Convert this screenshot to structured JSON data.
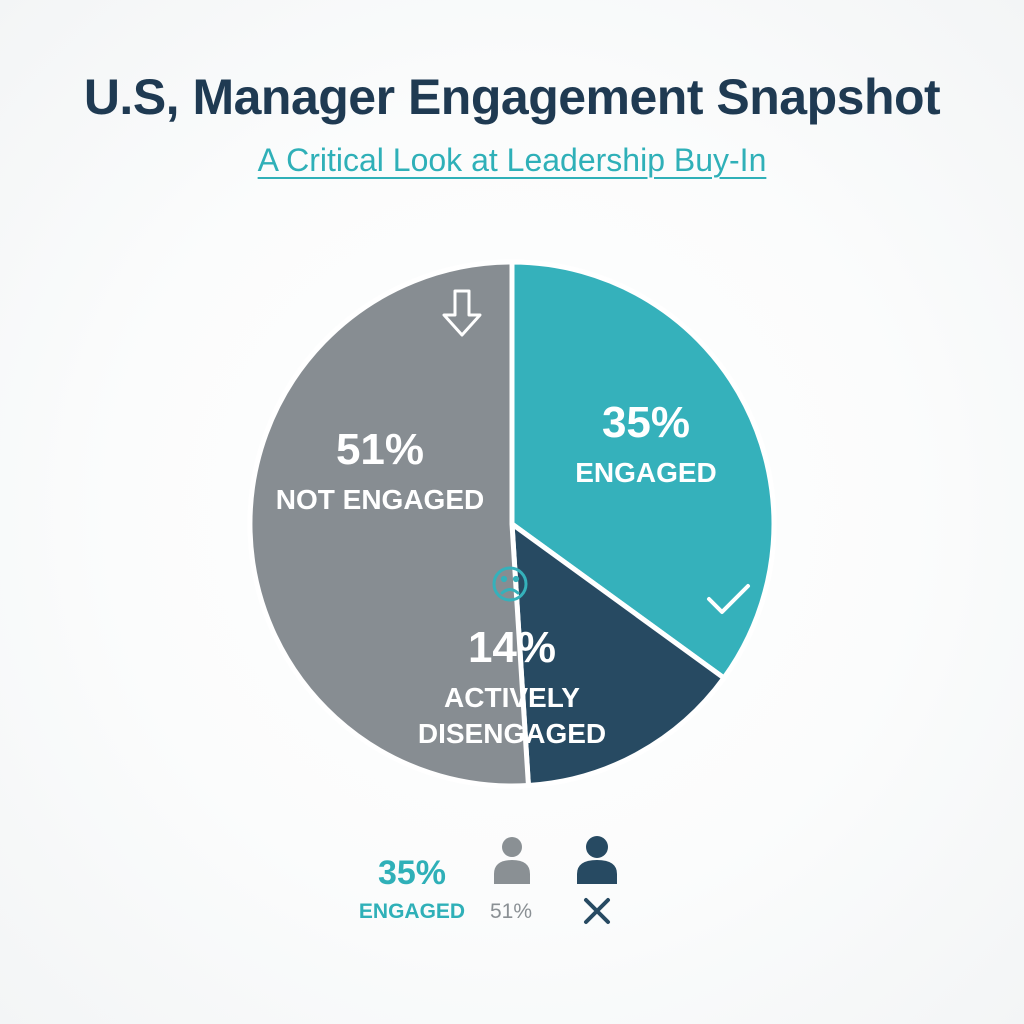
{
  "header": {
    "title": "U.S, Manager Engagement Snapshot",
    "subtitle": "A Critical Look at Leadership Buy-In"
  },
  "chart_data": {
    "type": "pie",
    "title": "U.S, Manager Engagement Snapshot",
    "subtitle": "A Critical Look at Leadership Buy-In",
    "slices": [
      {
        "name": "ENGAGED",
        "value": 35,
        "value_label": "35%",
        "label_lines": [
          "ENGAGED"
        ],
        "color": "#35b1bb",
        "icon": "check-icon"
      },
      {
        "name": "ACTIVELY DISENGAGED",
        "value": 14,
        "value_label": "14%",
        "label_lines": [
          "ACTIVELY",
          "DISENGAGED"
        ],
        "color": "#274a62",
        "icon": "sad-face-icon"
      },
      {
        "name": "NOT ENGAGED",
        "value": 51,
        "value_label": "51%",
        "label_lines": [
          "NOT ENGAGED"
        ],
        "color": "#878d92",
        "icon": "down-arrow-icon"
      }
    ]
  },
  "legend": {
    "engaged_value": "35%",
    "engaged_label": "ENGAGED",
    "not_engaged_value": "51%",
    "colors": {
      "engaged": "#2fb0b8",
      "not_engaged": "#8a9094",
      "disengaged": "#274a62"
    },
    "icons": [
      "person-icon",
      "person-icon",
      "x-mark-icon"
    ]
  }
}
